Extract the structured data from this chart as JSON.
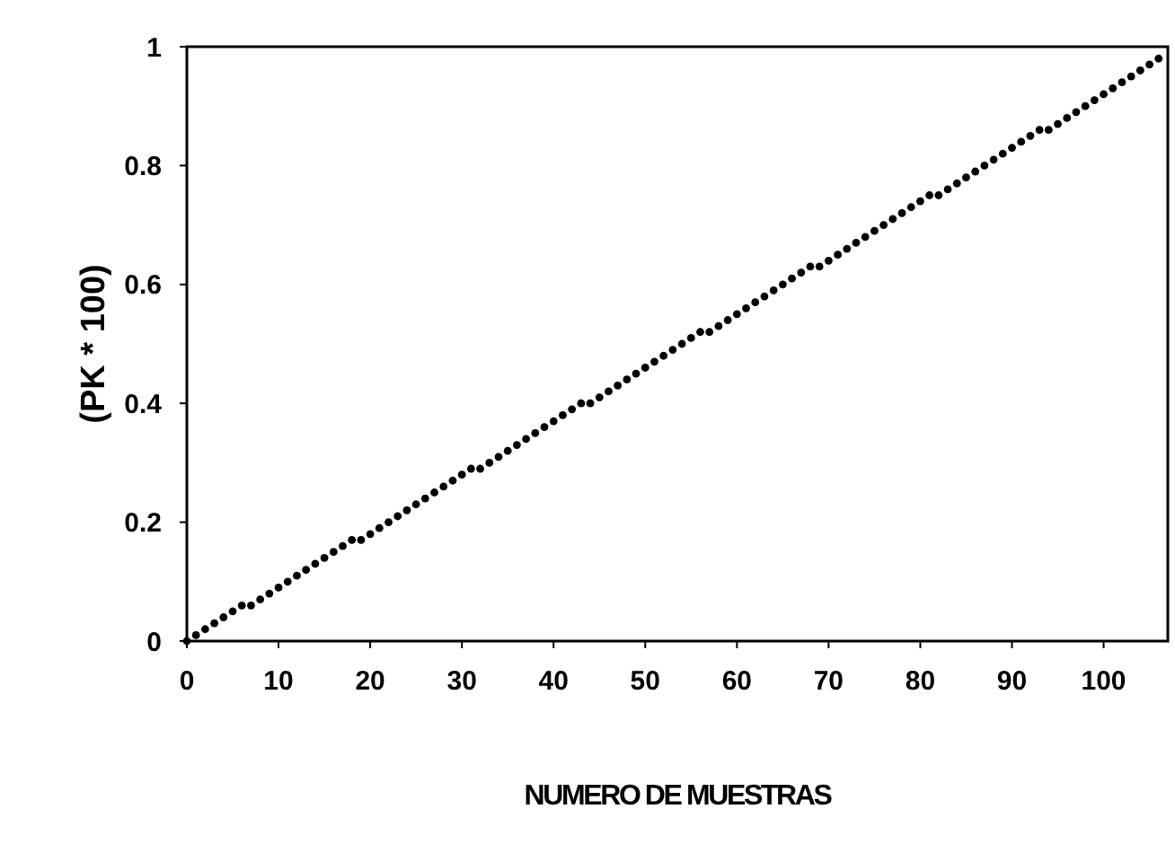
{
  "chart_data": {
    "type": "scatter",
    "xlabel": "NUMERO DE MUESTRAS",
    "ylabel": "(PK * 100)",
    "x": [
      0,
      1,
      2,
      3,
      4,
      5,
      6,
      7,
      8,
      9,
      10,
      11,
      12,
      13,
      14,
      15,
      16,
      17,
      18,
      19,
      20,
      21,
      22,
      23,
      24,
      25,
      26,
      27,
      28,
      29,
      30,
      31,
      32,
      33,
      34,
      35,
      36,
      37,
      38,
      39,
      40,
      41,
      42,
      43,
      44,
      45,
      46,
      47,
      48,
      49,
      50,
      51,
      52,
      53,
      54,
      55,
      56,
      57,
      58,
      59,
      60,
      61,
      62,
      63,
      64,
      65,
      66,
      67,
      68,
      69,
      70,
      71,
      72,
      73,
      74,
      75,
      76,
      77,
      78,
      79,
      80,
      81,
      82,
      83,
      84,
      85,
      86,
      87,
      88,
      89,
      90,
      91,
      92,
      93,
      94,
      95,
      96,
      97,
      98,
      99,
      100,
      101,
      102,
      103,
      104,
      105,
      106
    ],
    "series": [
      {
        "color": "#000000",
        "values": [
          0,
          0.01,
          0.02,
          0.03,
          0.04,
          0.05,
          0.06,
          0.06,
          0.07,
          0.08,
          0.09,
          0.1,
          0.11,
          0.12,
          0.13,
          0.14,
          0.15,
          0.16,
          0.17,
          0.17,
          0.18,
          0.19,
          0.2,
          0.21,
          0.22,
          0.23,
          0.24,
          0.25,
          0.26,
          0.27,
          0.28,
          0.29,
          0.29,
          0.3,
          0.31,
          0.32,
          0.33,
          0.34,
          0.35,
          0.36,
          0.37,
          0.38,
          0.39,
          0.4,
          0.4,
          0.41,
          0.42,
          0.43,
          0.44,
          0.45,
          0.46,
          0.47,
          0.48,
          0.49,
          0.5,
          0.51,
          0.52,
          0.52,
          0.53,
          0.54,
          0.55,
          0.56,
          0.57,
          0.58,
          0.59,
          0.6,
          0.61,
          0.62,
          0.63,
          0.63,
          0.64,
          0.65,
          0.66,
          0.67,
          0.68,
          0.69,
          0.7,
          0.71,
          0.72,
          0.73,
          0.74,
          0.75,
          0.75,
          0.76,
          0.77,
          0.78,
          0.79,
          0.8,
          0.81,
          0.82,
          0.83,
          0.84,
          0.85,
          0.86,
          0.86,
          0.87,
          0.88,
          0.89,
          0.9,
          0.91,
          0.92,
          0.93,
          0.94,
          0.95,
          0.96,
          0.97,
          0.98
        ]
      }
    ],
    "xlim": [
      0,
      107
    ],
    "xticks": [
      0,
      10,
      20,
      30,
      40,
      50,
      60,
      70,
      80,
      90,
      100
    ],
    "ylim": [
      0,
      1
    ],
    "yticks": [
      0,
      0.2,
      0.4,
      0.6,
      0.8,
      1
    ],
    "marker": "circle",
    "grid": false
  }
}
